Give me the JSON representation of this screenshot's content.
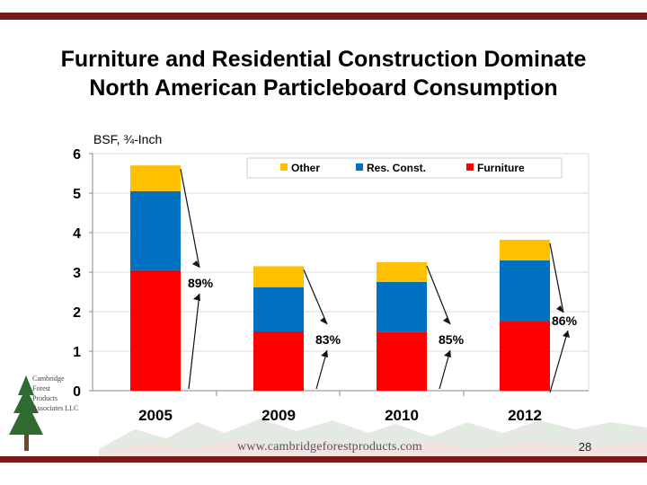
{
  "slide": {
    "title_line1": "Furniture and Residential Construction Dominate",
    "title_line2": "North American Particleboard Consumption",
    "page_number": "28",
    "website": "www.cambridgeforestproducts.com",
    "logo_lines": [
      "Cambridge",
      "Forest",
      "Products",
      "Associates LLC"
    ]
  },
  "chart_data": {
    "type": "bar",
    "stacked": true,
    "ylabel": "BSF, ¾-Inch",
    "ylim": [
      0,
      6
    ],
    "yticks": [
      0,
      1,
      2,
      3,
      4,
      5,
      6
    ],
    "categories": [
      "2005",
      "2009",
      "2010",
      "2012"
    ],
    "series": [
      {
        "name": "Furniture",
        "color": "#ff0000",
        "values": [
          3.05,
          1.5,
          1.48,
          1.75
        ]
      },
      {
        "name": "Res. Const.",
        "color": "#0070c0",
        "values": [
          2.0,
          1.12,
          1.27,
          1.55
        ]
      },
      {
        "name": "Other",
        "color": "#ffc000",
        "values": [
          0.65,
          0.53,
          0.5,
          0.52
        ]
      }
    ],
    "legend_order": [
      "Other",
      "Res. Const.",
      "Furniture"
    ],
    "legend_position": "top-right",
    "annotations": [
      "89%",
      "83%",
      "85%",
      "86%"
    ]
  }
}
